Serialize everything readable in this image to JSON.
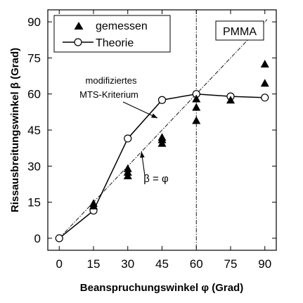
{
  "chart_data": {
    "type": "line",
    "xlabel": "Beanspruchungswinkel φ (Grad)",
    "ylabel": "Rissausbreitungswinkel β (Grad)",
    "xlim": [
      -5,
      95
    ],
    "ylim": [
      -5,
      95
    ],
    "xticks": [
      0,
      15,
      30,
      45,
      60,
      75,
      90
    ],
    "yticks": [
      0,
      15,
      30,
      45,
      60,
      75,
      90
    ],
    "grid": false,
    "legend_position": "top-left",
    "material_label": "PMMA",
    "series": [
      {
        "name": "gemessen",
        "kind": "scatter",
        "marker": "filled-triangle",
        "points": [
          [
            15,
            14.5
          ],
          [
            15,
            13.5
          ],
          [
            30,
            29
          ],
          [
            30,
            27.5
          ],
          [
            30,
            26
          ],
          [
            45,
            42
          ],
          [
            45,
            41
          ],
          [
            45,
            39.5
          ],
          [
            60,
            58
          ],
          [
            60,
            54.5
          ],
          [
            60,
            49
          ],
          [
            75,
            57.5
          ],
          [
            90,
            72.5
          ],
          [
            90,
            64.5
          ]
        ]
      },
      {
        "name": "Theorie",
        "kind": "line",
        "marker": "open-circle",
        "points": [
          [
            0,
            0
          ],
          [
            15,
            11.5
          ],
          [
            30,
            41.5
          ],
          [
            45,
            57.5
          ],
          [
            60,
            60
          ],
          [
            75,
            59
          ],
          [
            90,
            58.5
          ]
        ]
      }
    ],
    "reference_lines": [
      {
        "kind": "diagonal",
        "label": "β = φ",
        "from": [
          0,
          0
        ],
        "to": [
          91,
          91
        ]
      },
      {
        "kind": "vertical",
        "x": 60
      }
    ],
    "annotations": [
      {
        "text_lines": [
          "modifiziertes",
          "MTS-Kriterium"
        ],
        "points_to": [
          43,
          50
        ]
      },
      {
        "text": "β = φ",
        "points_to": [
          36,
          36
        ]
      }
    ]
  }
}
